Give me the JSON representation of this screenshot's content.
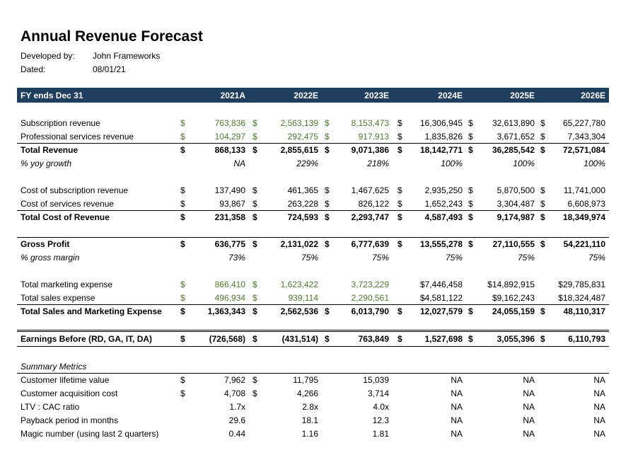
{
  "title": "Annual Revenue Forecast",
  "meta": {
    "developed_label": "Developed by:",
    "developed_value": "John Frameworks",
    "dated_label": "Dated:",
    "dated_value": "08/01/21"
  },
  "header": {
    "label": "FY ends Dec 31",
    "years": [
      "2021A",
      "2022E",
      "2023E",
      "2024E",
      "2025E",
      "2026E"
    ]
  },
  "rows": [
    {
      "label": "Subscription revenue",
      "style": "",
      "cells": [
        {
          "v": "763,836",
          "d": "$",
          "g": true
        },
        {
          "v": "2,563,139",
          "d": "$",
          "g": true
        },
        {
          "v": "8,153,473",
          "d": "$",
          "g": true
        },
        {
          "v": "16,306,945",
          "d": "$"
        },
        {
          "v": "32,613,890",
          "d": "$"
        },
        {
          "v": "65,227,780",
          "d": "$"
        }
      ]
    },
    {
      "label": "Professional services revenue",
      "style": "",
      "cells": [
        {
          "v": "104,297",
          "d": "$",
          "g": true
        },
        {
          "v": "292,475",
          "d": "$",
          "g": true
        },
        {
          "v": "917,913",
          "d": "$",
          "g": true
        },
        {
          "v": "1,835,826",
          "d": "$"
        },
        {
          "v": "3,671,652",
          "d": "$"
        },
        {
          "v": "7,343,304",
          "d": "$"
        }
      ]
    },
    {
      "label": "Total Revenue",
      "style": "b",
      "cells": [
        {
          "v": "868,133",
          "d": "$"
        },
        {
          "v": "2,855,615",
          "d": "$"
        },
        {
          "v": "9,071,386",
          "d": "$"
        },
        {
          "v": "18,142,771",
          "d": "$"
        },
        {
          "v": "36,285,542",
          "d": "$"
        },
        {
          "v": "72,571,084",
          "d": "$"
        }
      ]
    },
    {
      "label": "% yoy growth",
      "style": "i",
      "cells": [
        {
          "v": "NA"
        },
        {
          "v": "229%"
        },
        {
          "v": "218%"
        },
        {
          "v": "100%"
        },
        {
          "v": "100%"
        },
        {
          "v": "100%"
        }
      ]
    },
    {
      "label": "Cost of subscription revenue",
      "style": "",
      "cells": [
        {
          "v": "137,490",
          "d": "$"
        },
        {
          "v": "461,365",
          "d": "$"
        },
        {
          "v": "1,467,625",
          "d": "$"
        },
        {
          "v": "2,935,250",
          "d": "$"
        },
        {
          "v": "5,870,500",
          "d": "$"
        },
        {
          "v": "11,741,000",
          "d": "$"
        }
      ]
    },
    {
      "label": "Cost of services revenue",
      "style": "",
      "cells": [
        {
          "v": "93,867",
          "d": "$"
        },
        {
          "v": "263,228",
          "d": "$"
        },
        {
          "v": "826,122",
          "d": "$"
        },
        {
          "v": "1,652,243",
          "d": "$"
        },
        {
          "v": "3,304,487",
          "d": "$"
        },
        {
          "v": "6,608,973",
          "d": "$"
        }
      ]
    },
    {
      "label": "Total Cost of Revenue",
      "style": "b",
      "cells": [
        {
          "v": "231,358",
          "d": "$"
        },
        {
          "v": "724,593",
          "d": "$"
        },
        {
          "v": "2,293,747",
          "d": "$"
        },
        {
          "v": "4,587,493",
          "d": "$"
        },
        {
          "v": "9,174,987",
          "d": "$"
        },
        {
          "v": "18,349,974",
          "d": "$"
        }
      ]
    },
    {
      "label": "Gross Profit",
      "style": "b",
      "cells": [
        {
          "v": "636,775",
          "d": "$"
        },
        {
          "v": "2,131,022",
          "d": "$"
        },
        {
          "v": "6,777,639",
          "d": "$"
        },
        {
          "v": "13,555,278",
          "d": "$"
        },
        {
          "v": "27,110,555",
          "d": "$"
        },
        {
          "v": "54,221,110",
          "d": "$"
        }
      ]
    },
    {
      "label": "% gross margin",
      "style": "i",
      "cells": [
        {
          "v": "73%"
        },
        {
          "v": "75%"
        },
        {
          "v": "75%"
        },
        {
          "v": "75%"
        },
        {
          "v": "75%"
        },
        {
          "v": "75%"
        }
      ]
    },
    {
      "label": "Total marketing expense",
      "style": "",
      "cells": [
        {
          "v": "866,410",
          "d": "$",
          "g": true
        },
        {
          "v": "1,623,422",
          "d": "$",
          "g": true
        },
        {
          "v": "3,723,229",
          "g": true
        },
        {
          "v": "$7,446,458"
        },
        {
          "v": "$14,892,915"
        },
        {
          "v": "$29,785,831"
        }
      ]
    },
    {
      "label": "Total sales expense",
      "style": "",
      "cells": [
        {
          "v": "496,934",
          "d": "$",
          "g": true
        },
        {
          "v": "939,114",
          "d": "$",
          "g": true
        },
        {
          "v": "2,290,561",
          "g": true
        },
        {
          "v": "$4,581,122"
        },
        {
          "v": "$9,162,243"
        },
        {
          "v": "$18,324,487"
        }
      ]
    },
    {
      "label": "Total Sales and Marketing Expense",
      "style": "b",
      "cells": [
        {
          "v": "1,363,343",
          "d": "$"
        },
        {
          "v": "2,562,536",
          "d": "$"
        },
        {
          "v": "6,013,790",
          "d": "$"
        },
        {
          "v": "12,027,579",
          "d": "$"
        },
        {
          "v": "24,055,159",
          "d": "$"
        },
        {
          "v": "48,110,317",
          "d": "$"
        }
      ]
    },
    {
      "label": "Earnings Before (RD, GA, IT, DA)",
      "style": "b",
      "cells": [
        {
          "v": "(726,568)",
          "d": "$"
        },
        {
          "v": "(431,514)",
          "d": "$"
        },
        {
          "v": "763,849",
          "d": "$"
        },
        {
          "v": "1,527,698",
          "d": "$"
        },
        {
          "v": "3,055,396",
          "d": "$"
        },
        {
          "v": "6,110,793",
          "d": "$"
        }
      ]
    },
    {
      "label": "Summary Metrics",
      "style": "i",
      "cells": []
    },
    {
      "label": "Customer lifetime value",
      "style": "",
      "cells": [
        {
          "v": "7,962",
          "d": "$"
        },
        {
          "v": "11,795",
          "d": "$"
        },
        {
          "v": "15,039"
        },
        {
          "v": "NA"
        },
        {
          "v": "NA"
        },
        {
          "v": "NA"
        }
      ]
    },
    {
      "label": "Customer acquisition cost",
      "style": "",
      "cells": [
        {
          "v": "4,708",
          "d": "$"
        },
        {
          "v": "4,266",
          "d": "$"
        },
        {
          "v": "3,714"
        },
        {
          "v": "NA"
        },
        {
          "v": "NA"
        },
        {
          "v": "NA"
        }
      ]
    },
    {
      "label": "LTV : CAC ratio",
      "style": "",
      "cells": [
        {
          "v": "1.7x"
        },
        {
          "v": "2.8x"
        },
        {
          "v": "4.0x"
        },
        {
          "v": "NA"
        },
        {
          "v": "NA"
        },
        {
          "v": "NA"
        }
      ]
    },
    {
      "label": "Payback period in months",
      "style": "",
      "cells": [
        {
          "v": "29.6"
        },
        {
          "v": "18.1"
        },
        {
          "v": "12.3"
        },
        {
          "v": "NA"
        },
        {
          "v": "NA"
        },
        {
          "v": "NA"
        }
      ]
    },
    {
      "label": "Magic number (using last 2 quarters)",
      "style": "",
      "cells": [
        {
          "v": "0.44"
        },
        {
          "v": "1.16"
        },
        {
          "v": "1.81"
        },
        {
          "v": "NA"
        },
        {
          "v": "NA"
        },
        {
          "v": "NA"
        }
      ]
    }
  ]
}
